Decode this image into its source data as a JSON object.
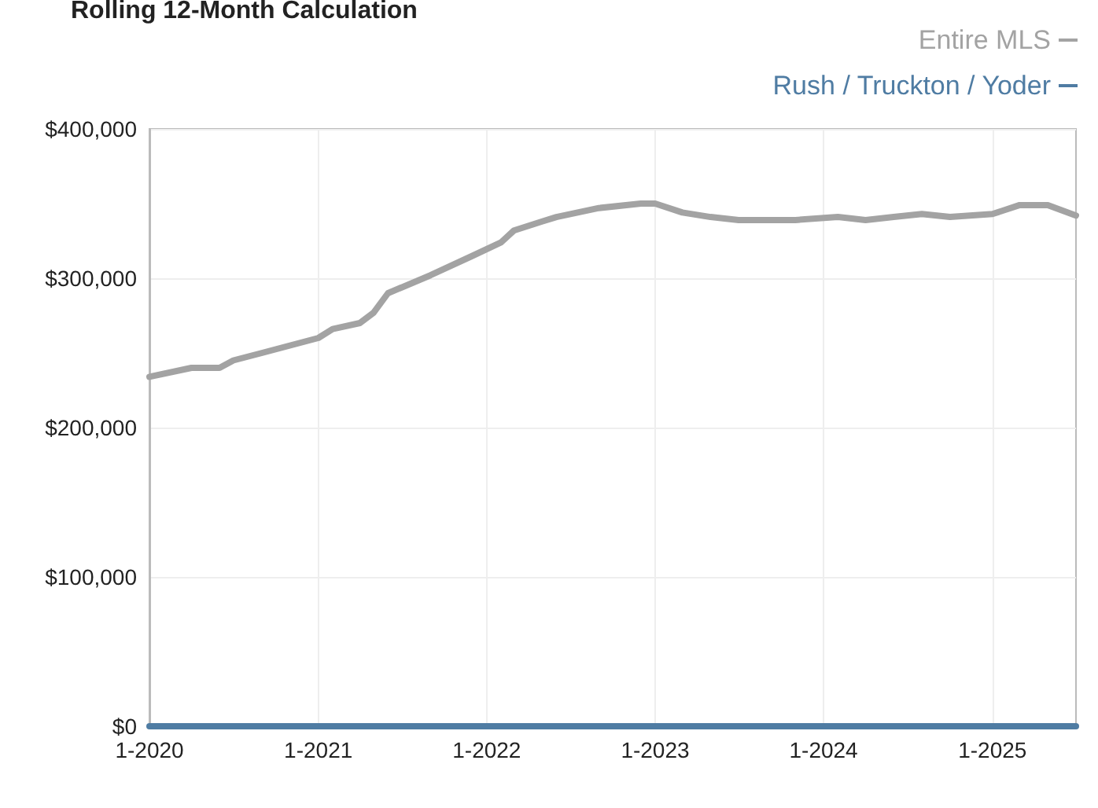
{
  "chart_data": {
    "type": "line",
    "title": "Rolling 12-Month Calculation",
    "x": [
      "2020-01",
      "2020-04",
      "2020-06",
      "2020-07",
      "2020-09",
      "2021-01",
      "2021-02",
      "2021-04",
      "2021-05",
      "2021-06",
      "2021-09",
      "2021-12",
      "2022-02",
      "2022-03",
      "2022-05",
      "2022-06",
      "2022-09",
      "2022-12",
      "2023-01",
      "2023-03",
      "2023-05",
      "2023-07",
      "2023-11",
      "2024-02",
      "2024-04",
      "2024-06",
      "2024-08",
      "2024-10",
      "2025-01",
      "2025-03",
      "2025-05",
      "2025-07"
    ],
    "series": [
      {
        "name": "Entire MLS",
        "color": "#a3a3a3",
        "values": [
          234000,
          240000,
          240000,
          245000,
          250000,
          260000,
          266000,
          270000,
          277000,
          290000,
          302000,
          315000,
          324000,
          332000,
          338000,
          341000,
          347000,
          350000,
          350000,
          344000,
          341000,
          339000,
          339000,
          341000,
          339000,
          341000,
          343000,
          341000,
          343000,
          349000,
          349000,
          342000
        ]
      },
      {
        "name": "Rush / Truckton / Yoder",
        "color": "#4f7ca3",
        "values": [
          0,
          0,
          0,
          0,
          0,
          0,
          0,
          0,
          0,
          0,
          0,
          0,
          0,
          0,
          0,
          0,
          0,
          0,
          0,
          0,
          0,
          0,
          0,
          0,
          0,
          0,
          0,
          0,
          0,
          0,
          0,
          0
        ]
      }
    ],
    "xlim": [
      "2020-01",
      "2025-07"
    ],
    "xticks": [
      {
        "value": "2020-01",
        "label": "1-2020"
      },
      {
        "value": "2021-01",
        "label": "1-2021"
      },
      {
        "value": "2022-01",
        "label": "1-2022"
      },
      {
        "value": "2023-01",
        "label": "1-2023"
      },
      {
        "value": "2024-01",
        "label": "1-2024"
      },
      {
        "value": "2025-01",
        "label": "1-2025"
      }
    ],
    "ylim": [
      0,
      400000
    ],
    "yticks": [
      {
        "value": 0,
        "label": "$0"
      },
      {
        "value": 100000,
        "label": "$100,000"
      },
      {
        "value": 200000,
        "label": "$200,000"
      },
      {
        "value": 300000,
        "label": "$300,000"
      },
      {
        "value": 400000,
        "label": "$400,000"
      }
    ],
    "grid": true,
    "legend": "top right",
    "marker": "none",
    "line_style": "solid"
  }
}
